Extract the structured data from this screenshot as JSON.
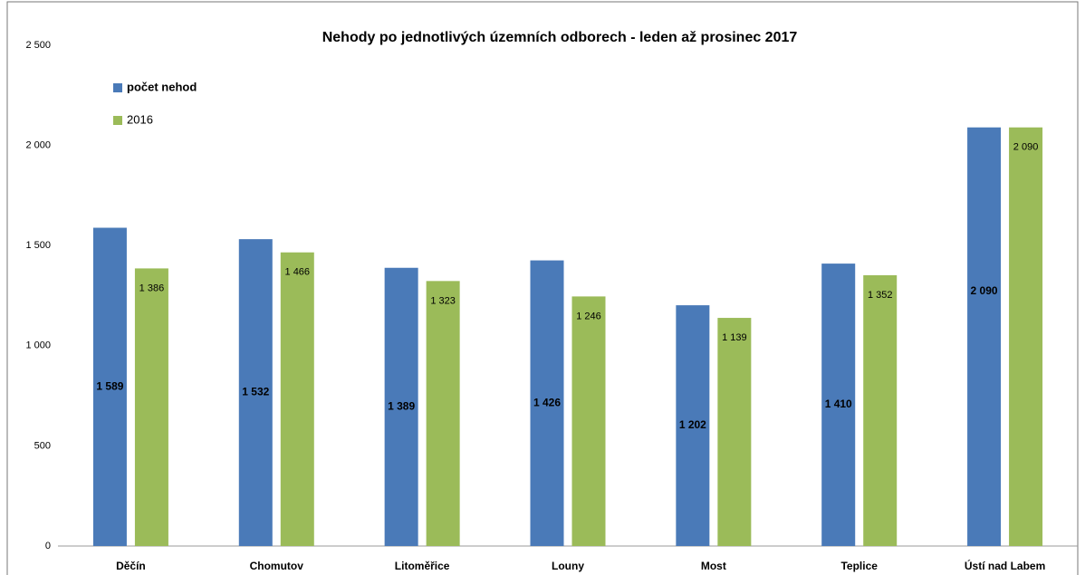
{
  "chart_data": {
    "type": "bar",
    "title": "Nehody po jednotlivých územních odborech - leden až  prosinec 2017",
    "categories": [
      "Děčín",
      "Chomutov",
      "Litoměřice",
      "Louny",
      "Most",
      "Teplice",
      "Ústí nad Labem"
    ],
    "series": [
      {
        "name": "počet nehod",
        "color": "#4a7ab8",
        "values": [
          1589,
          1532,
          1389,
          1426,
          1202,
          1410,
          2090
        ],
        "value_labels": [
          "1 589",
          "1 532",
          "1 389",
          "1 426",
          "1 202",
          "1 410",
          "2 090"
        ]
      },
      {
        "name": "2016",
        "color": "#9bbb59",
        "values": [
          1386,
          1466,
          1323,
          1246,
          1139,
          1352,
          2090
        ],
        "value_labels": [
          "1 386",
          "1 466",
          "1 323",
          "1 246",
          "1 139",
          "1 352",
          "2 090"
        ]
      }
    ],
    "ylim": [
      0,
      2500
    ],
    "yticks": [
      0,
      500,
      {
        "value": 1000,
        "label": "1 000"
      },
      {
        "value": 1500,
        "label": "1 500"
      },
      {
        "value": 2000,
        "label": "2 000"
      },
      {
        "value": 2500,
        "label": "2 500"
      }
    ],
    "grid": false,
    "legend": "top-left"
  }
}
